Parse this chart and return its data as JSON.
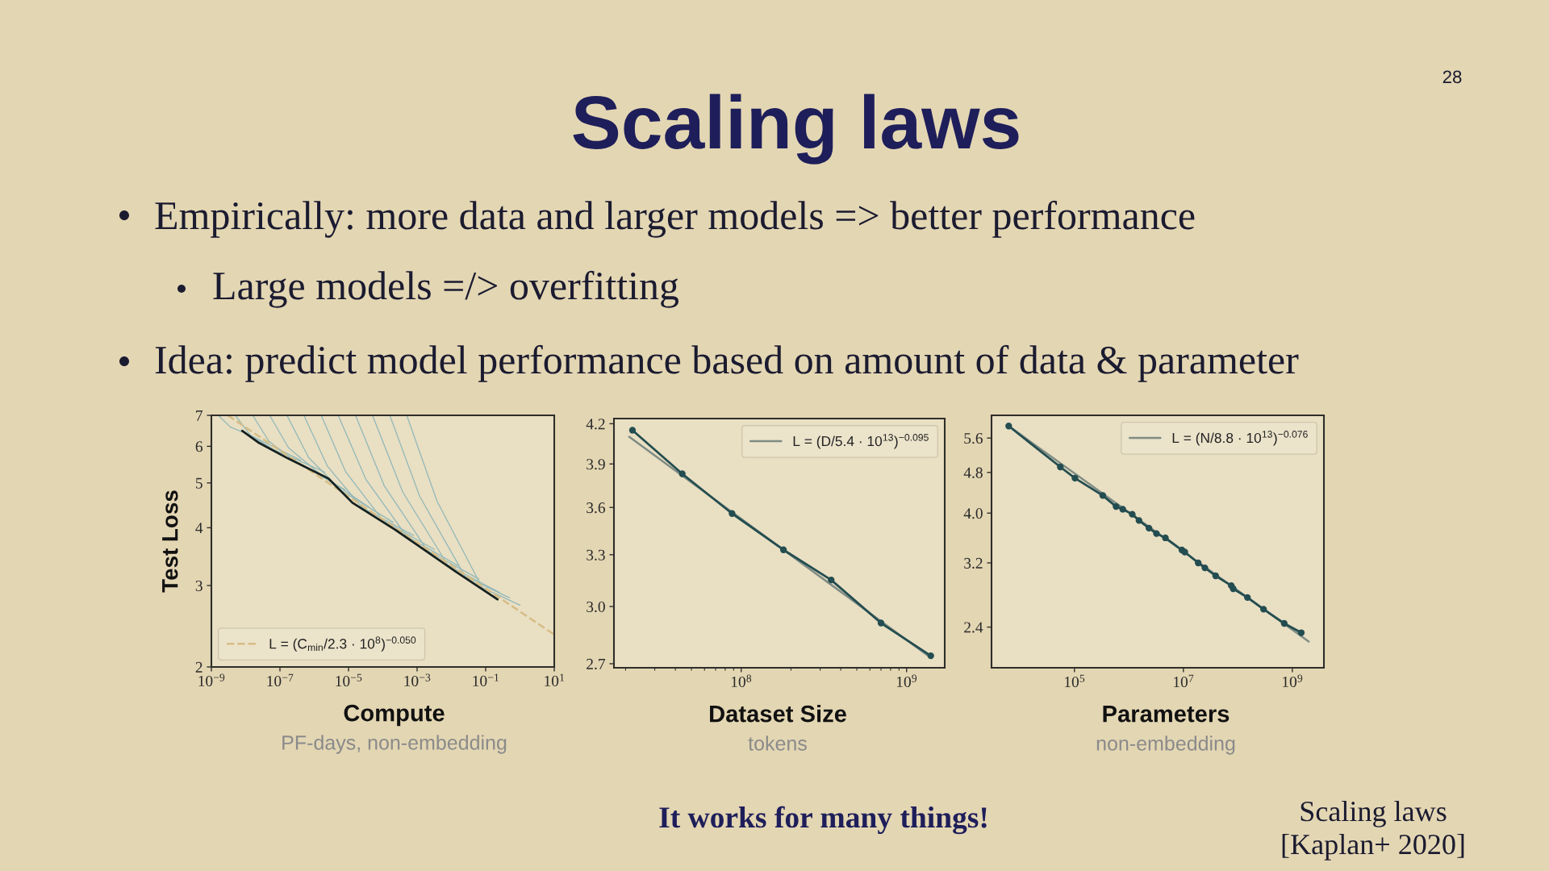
{
  "chart_data": [
    {
      "type": "other",
      "title": "Scaling laws",
      "annotations": [
        "Empirically: more data and larger models => better performance",
        "Large models =/> overfitting",
        "Idea: predict model performance based on amount of data & parameter",
        "It works for many things!",
        "Scaling laws",
        "[Kaplan+ 2020]",
        "28"
      ]
    },
    {
      "type": "line",
      "xlabel": "Compute",
      "ylabel": "Test Loss",
      "annotations": [
        "PF-days, non-embedding"
      ],
      "log": "xy",
      "xlim": [
        1e-09,
        10
      ],
      "ylim": [
        2,
        7
      ],
      "xticks": [
        {
          "value": 1e-09,
          "label": "10$^{−9}$"
        },
        {
          "value": 1e-07,
          "label": "10$^{−7}$"
        },
        {
          "value": 1e-05,
          "label": "10$^{−5}$"
        },
        {
          "value": 0.001,
          "label": "10$^{−3}$"
        },
        {
          "value": 0.1,
          "label": "10$^{−1}$"
        },
        {
          "value": 10,
          "label": "10$^{1}$"
        }
      ],
      "yticks": [
        2,
        3,
        4,
        5,
        6,
        7
      ],
      "legend": "bottom left",
      "series": [
        {
          "color": "#8fb7b8",
          "x": [
            1.6e-09,
            3.6e-09,
            1.3e-08,
            4e-07
          ],
          "values": [
            7,
            6.6,
            6.35,
            5.6
          ]
        },
        {
          "color": "#8fb7b8",
          "x": [
            5e-09,
            1.4e-08,
            6.3e-08,
            2e-06
          ],
          "values": [
            7,
            6.33,
            5.91,
            5.28
          ]
        },
        {
          "color": "#8fb7b8",
          "x": [
            1.6e-08,
            4.8e-08,
            2.5e-07,
            7.9e-06
          ],
          "values": [
            7,
            6.15,
            5.6,
            4.83
          ]
        },
        {
          "color": "#8fb7b8",
          "x": [
            5e-08,
            1.8e-07,
            1.3e-06,
            4e-05
          ],
          "values": [
            7,
            5.95,
            5.27,
            4.43
          ]
        },
        {
          "color": "#8fb7b8",
          "x": [
            1.6e-07,
            6.9e-07,
            6.3e-06,
            0.0002
          ],
          "values": [
            7,
            5.67,
            4.81,
            4.11
          ]
        },
        {
          "color": "#8fb7b8",
          "x": [
            5e-07,
            2.4e-06,
            2.5e-05,
            0.00079
          ],
          "values": [
            7,
            5.44,
            4.42,
            3.85
          ]
        },
        {
          "color": "#8fb7b8",
          "x": [
            1.6e-06,
            8.3e-06,
            0.0001,
            0.0032
          ],
          "values": [
            7,
            5.28,
            4.15,
            3.59
          ]
        },
        {
          "color": "#8fb7b8",
          "x": [
            5e-06,
            3.2e-05,
            0.0005,
            0.016
          ],
          "values": [
            7,
            5.09,
            3.83,
            3.31
          ]
        },
        {
          "color": "#8fb7b8",
          "x": [
            1.6e-05,
            0.00011,
            0.002,
            0.063
          ],
          "values": [
            7,
            4.93,
            3.57,
            3.1
          ]
        },
        {
          "color": "#8fb7b8",
          "x": [
            5e-05,
            0.00038,
            0.0079,
            0.25
          ],
          "values": [
            7,
            4.78,
            3.32,
            2.9
          ]
        },
        {
          "color": "#8fb7b8",
          "x": [
            0.00016,
            0.0012,
            0.025,
            0.5
          ],
          "values": [
            7,
            4.67,
            3.14,
            2.82
          ]
        },
        {
          "color": "#8fb7b8",
          "x": [
            0.0005,
            0.0038,
            0.079,
            1
          ],
          "values": [
            7,
            4.57,
            2.97,
            2.72
          ]
        },
        {
          "name": "L = (C$_{min}$/2.3 · 10$^{8}$)$^{−0.050}$",
          "color": "#d6bd85",
          "line_style": "dashed",
          "x": [
            3e-09,
            10
          ],
          "values": [
            7,
            2.35
          ]
        },
        {
          "color": "#14201f",
          "x": [
            7.9e-09,
            2.3e-08,
            1.7e-07,
            2.6e-06,
            1.3e-05,
            0.00023,
            0.0014,
            0.013,
            0.22
          ],
          "values": [
            6.48,
            6.12,
            5.65,
            5.11,
            4.53,
            3.96,
            3.61,
            3.22,
            2.8
          ]
        }
      ]
    },
    {
      "type": "line",
      "xlabel": "Dataset Size",
      "annotations": [
        "tokens"
      ],
      "log": "xy",
      "xlim": [
        17000000.0,
        1700000000.0
      ],
      "ylim": [
        2.68,
        4.24
      ],
      "xticks": [
        {
          "value": 20000000.0,
          "label": null
        },
        {
          "value": 30000000.0,
          "label": null
        },
        {
          "value": 40000000.0,
          "label": null
        },
        {
          "value": 50000000.0,
          "label": null
        },
        {
          "value": 60000000.0,
          "label": null
        },
        {
          "value": 70000000.0,
          "label": null
        },
        {
          "value": 80000000.0,
          "label": null
        },
        {
          "value": 90000000.0,
          "label": null
        },
        {
          "value": 100000000.0,
          "label": "10$^{8}$"
        },
        {
          "value": 200000000.0,
          "label": null
        },
        {
          "value": 300000000.0,
          "label": null
        },
        {
          "value": 400000000.0,
          "label": null
        },
        {
          "value": 500000000.0,
          "label": null
        },
        {
          "value": 600000000.0,
          "label": null
        },
        {
          "value": 700000000.0,
          "label": null
        },
        {
          "value": 800000000.0,
          "label": null
        },
        {
          "value": 900000000.0,
          "label": null
        },
        {
          "value": 1000000000.0,
          "label": "10$^{9}$"
        }
      ],
      "yticks": [
        2.7,
        {
          "value": 3,
          "label": "3.0"
        },
        3.3,
        3.6,
        3.9,
        4.2
      ],
      "legend": "top right",
      "series": [
        {
          "name": "L = (D/5.4 · 10$^{13}$)$^{−0.095}$",
          "color": "#7f8c84",
          "x": [
            21000000.0,
            1400000000.0
          ],
          "values": [
            4.1,
            2.73
          ]
        },
        {
          "color": "#234d50",
          "marker": "circle",
          "x": [
            22000000.0,
            44000000.0,
            88000000.0,
            180000000.0,
            350000000.0,
            700000000.0,
            1400000000.0
          ],
          "values": [
            4.15,
            3.83,
            3.56,
            3.33,
            3.15,
            2.91,
            2.74
          ]
        }
      ]
    },
    {
      "type": "line",
      "xlabel": "Parameters",
      "annotations": [
        "non-embedding"
      ],
      "log": "xy",
      "xlim": [
        3000,
        3800000000.0
      ],
      "ylim": [
        2.0,
        6.2
      ],
      "xticks": [
        {
          "value": 100000.0,
          "label": "10$^{5}$"
        },
        {
          "value": 10000000.0,
          "label": "10$^{7}$"
        },
        {
          "value": 1000000000.0,
          "label": "10$^{9}$"
        }
      ],
      "yticks": [
        2.4,
        3.2,
        {
          "value": 4,
          "label": "4.0"
        },
        4.8,
        5.6
      ],
      "legend": "top right",
      "series": [
        {
          "name": "L = (N/8.8 · 10$^{13}$)$^{−0.076}$",
          "color": "#7f8c84",
          "x": [
            6200,
            2000000000.0
          ],
          "values": [
            5.91,
            2.25
          ]
        },
        {
          "color": "#234d50",
          "marker": "circle",
          "x": [
            6200,
            55000,
            102000,
            330000,
            580000,
            770000,
            1150000.0,
            1530000.0,
            2330000.0,
            3200000.0,
            4670000.0,
            9400000.0,
            10600000.0,
            18700000.0,
            24800000.0,
            39100000.0,
            75700000.0,
            82000000.0,
            150000000.0,
            296000000.0,
            710000000.0,
            1460000000.0
          ],
          "values": [
            5.91,
            4.92,
            4.68,
            4.33,
            4.12,
            4.07,
            3.98,
            3.87,
            3.74,
            3.65,
            3.58,
            3.39,
            3.36,
            3.2,
            3.13,
            3.02,
            2.89,
            2.85,
            2.74,
            2.6,
            2.44,
            2.34
          ]
        }
      ]
    }
  ]
}
